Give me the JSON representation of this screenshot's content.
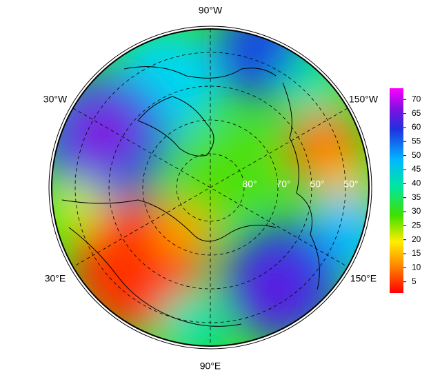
{
  "map": {
    "longitude_labels": [
      "90°W",
      "30°W",
      "150°W",
      "30°E",
      "150°E",
      "90°E"
    ],
    "latitude_labels": [
      "80°",
      "70°",
      "60°",
      "50°"
    ],
    "colorbar": {
      "lim": [
        1,
        74
      ],
      "ticks": [
        5,
        10,
        15,
        20,
        25,
        30,
        35,
        40,
        45,
        50,
        55,
        60,
        65,
        70
      ]
    }
  }
}
